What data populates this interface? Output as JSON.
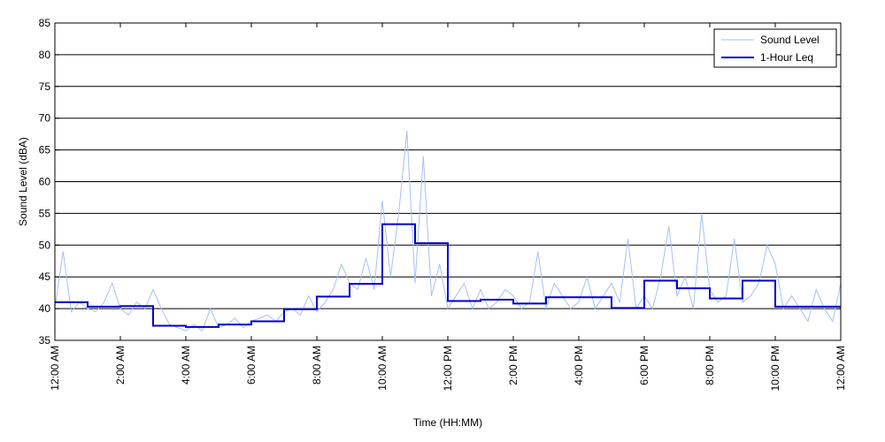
{
  "chart_data": {
    "type": "line",
    "xlabel": "Time (HH:MM)",
    "ylabel": "Sound Level (dBA)",
    "ylim": [
      35,
      85
    ],
    "yticks": [
      35,
      40,
      45,
      50,
      55,
      60,
      65,
      70,
      75,
      80,
      85
    ],
    "xlim_hours": [
      0,
      24
    ],
    "xticks": [
      {
        "hour": 0,
        "label": "12:00 AM"
      },
      {
        "hour": 2,
        "label": "2:00 AM"
      },
      {
        "hour": 4,
        "label": "4:00 AM"
      },
      {
        "hour": 6,
        "label": "6:00 AM"
      },
      {
        "hour": 8,
        "label": "8:00 AM"
      },
      {
        "hour": 10,
        "label": "10:00 AM"
      },
      {
        "hour": 12,
        "label": "12:00 PM"
      },
      {
        "hour": 14,
        "label": "2:00 PM"
      },
      {
        "hour": 16,
        "label": "4:00 PM"
      },
      {
        "hour": 18,
        "label": "6:00 PM"
      },
      {
        "hour": 20,
        "label": "8:00 PM"
      },
      {
        "hour": 22,
        "label": "10:00 PM"
      },
      {
        "hour": 24,
        "label": "12:00 AM"
      }
    ],
    "grid": "horizontal",
    "legend_position": "top-right",
    "series": [
      {
        "name": "Sound Level",
        "color": "#a8c0f0",
        "x": [
          0,
          0.25,
          0.5,
          0.75,
          1,
          1.25,
          1.5,
          1.75,
          2,
          2.25,
          2.5,
          2.75,
          3,
          3.25,
          3.5,
          3.75,
          4,
          4.25,
          4.5,
          4.75,
          5,
          5.25,
          5.5,
          5.75,
          6,
          6.25,
          6.5,
          6.75,
          7,
          7.25,
          7.5,
          7.75,
          8,
          8.25,
          8.5,
          8.75,
          9,
          9.25,
          9.5,
          9.75,
          10,
          10.25,
          10.5,
          10.75,
          11,
          11.25,
          11.5,
          11.75,
          12,
          12.25,
          12.5,
          12.75,
          13,
          13.25,
          13.5,
          13.75,
          14,
          14.25,
          14.5,
          14.75,
          15,
          15.25,
          15.5,
          15.75,
          16,
          16.25,
          16.5,
          16.75,
          17,
          17.25,
          17.5,
          17.75,
          18,
          18.25,
          18.5,
          18.75,
          19,
          19.25,
          19.5,
          19.75,
          20,
          20.25,
          20.5,
          20.75,
          21,
          21.25,
          21.5,
          21.75,
          22,
          22.25,
          22.5,
          22.75,
          23,
          23.25,
          23.5,
          23.75,
          24
        ],
        "y": [
          40,
          49,
          39.5,
          41,
          40,
          39.5,
          41,
          44,
          40,
          39,
          41,
          40,
          43,
          40,
          37.5,
          37,
          36.5,
          37.5,
          36.5,
          40,
          37,
          37.5,
          38.5,
          37,
          38,
          38.5,
          39,
          38,
          39.5,
          40,
          39,
          42,
          39.5,
          41,
          43,
          47,
          44,
          43,
          48,
          43,
          57,
          45,
          55,
          68,
          44,
          64,
          42,
          47,
          40,
          42,
          44,
          40,
          43,
          40,
          41,
          43,
          42,
          40,
          41,
          49,
          40,
          44,
          42,
          40,
          41,
          45,
          40,
          42,
          44,
          41,
          51,
          40,
          42,
          40,
          45,
          53,
          42,
          45,
          40,
          55,
          43,
          41,
          42,
          51,
          41,
          42,
          44,
          50,
          47,
          40,
          42,
          40,
          38,
          43,
          40,
          38,
          44
        ],
        "line_style": "thin"
      },
      {
        "name": "1-Hour Leq",
        "color": "#0000cc",
        "step_hours": [
          0,
          1,
          2,
          3,
          4,
          5,
          6,
          7,
          8,
          9,
          10,
          11,
          12,
          13,
          14,
          15,
          16,
          17,
          18,
          19,
          20,
          21,
          22,
          23
        ],
        "values": [
          41,
          40.3,
          40.4,
          37.3,
          37.1,
          37.5,
          38,
          39.9,
          41.9,
          43.9,
          53.3,
          50.3,
          41.2,
          41.4,
          40.8,
          41.8,
          41.8,
          40.1,
          44.4,
          43.2,
          41.6,
          44.4,
          40.3,
          40.3
        ],
        "line_style": "thick-step"
      }
    ]
  }
}
